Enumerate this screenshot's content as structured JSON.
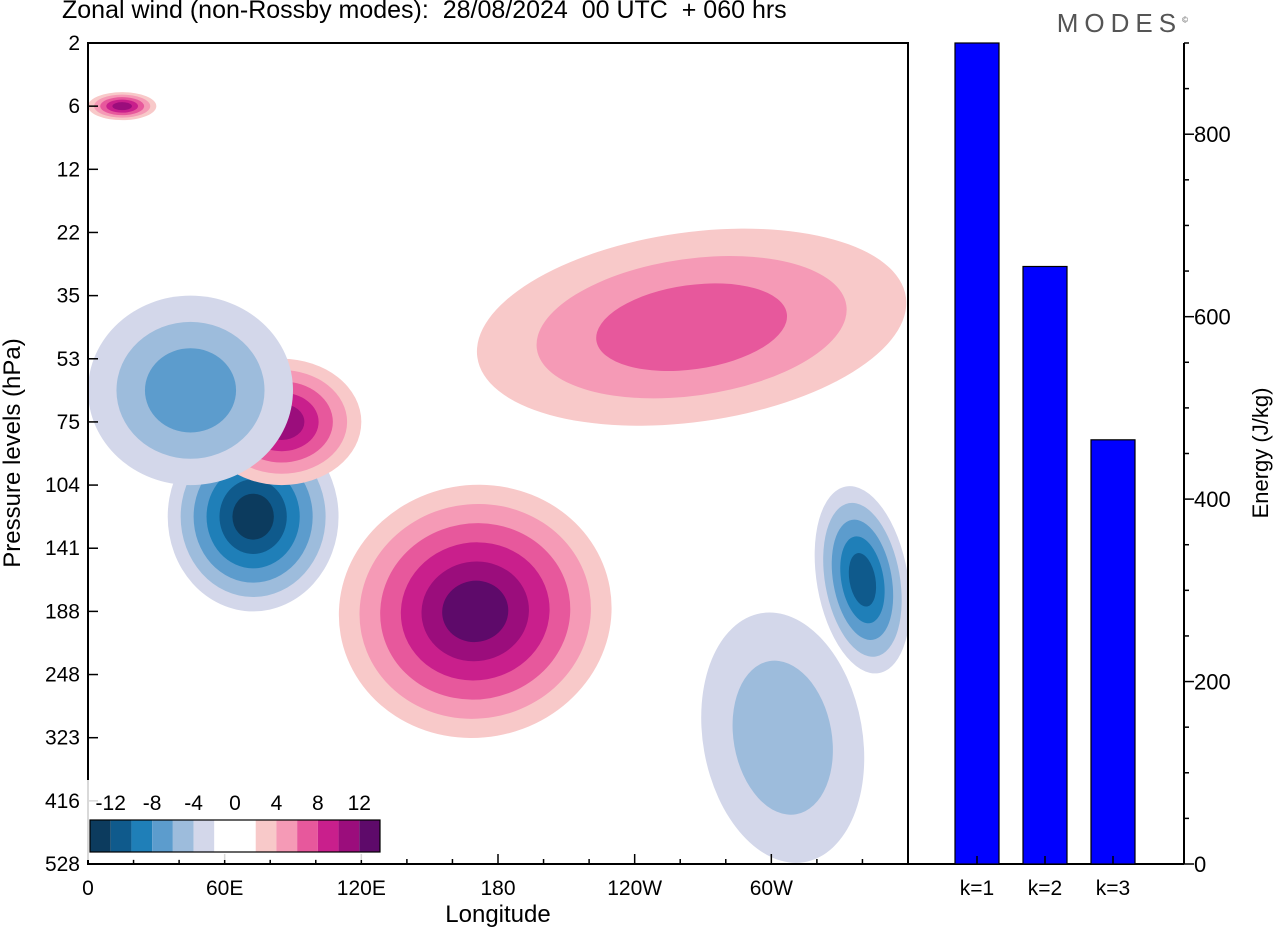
{
  "title": "Zonal wind (non-Rossby modes):  28/08/2024  00 UTC  + 060 hrs",
  "brand": "MODES",
  "brand_mark": "©",
  "chart_data": [
    {
      "type": "heatmap",
      "title": "Zonal wind (non-Rossby modes):  28/08/2024  00 UTC  + 060 hrs",
      "xlabel": "Longitude",
      "ylabel": "Pressure levels (hPa)",
      "x_ticks": [
        "0",
        "60E",
        "120E",
        "180",
        "120W",
        "60W"
      ],
      "x_tick_values": [
        0,
        60,
        120,
        180,
        240,
        300
      ],
      "xlim": [
        0,
        360
      ],
      "y_ticks": [
        "2",
        "6",
        "12",
        "22",
        "35",
        "53",
        "75",
        "104",
        "141",
        "188",
        "248",
        "323",
        "416",
        "528"
      ],
      "y_scale": "categorical, top to bottom",
      "colorbar": {
        "labels": [
          "-12",
          "-8",
          "-4",
          "0",
          "4",
          "8",
          "12"
        ],
        "levels": [
          -14,
          -12,
          -10,
          -8,
          -6,
          -4,
          -2,
          0,
          2,
          4,
          6,
          8,
          10,
          12,
          14
        ],
        "colors": [
          "#0c3b5e",
          "#0f5a8c",
          "#1f7fb8",
          "#5c9ccd",
          "#9dbcdc",
          "#d3d7ea",
          "#ffffff",
          "#ffffff",
          "#f8c9c9",
          "#f59ab6",
          "#e7589c",
          "#c91f8c",
          "#9b0d7c",
          "#5e0a6a"
        ]
      },
      "positive_color": "#f59ab6",
      "negative_color": "#9dbcdc",
      "features": [
        {
          "sign": "positive",
          "lon": [
            0,
            30
          ],
          "level": [
            6,
            6
          ],
          "peak": 10
        },
        {
          "sign": "positive",
          "lon": [
            110,
            230
          ],
          "level": [
            104,
            323
          ],
          "peak": 12
        },
        {
          "sign": "negative",
          "lon": [
            35,
            110
          ],
          "level": [
            75,
            188
          ],
          "peak": -12
        },
        {
          "sign": "negative",
          "lon": [
            320,
            360
          ],
          "level": [
            104,
            248
          ],
          "peak": -10
        },
        {
          "sign": "positive",
          "lon": [
            50,
            120
          ],
          "level": [
            53,
            104
          ],
          "peak": 10
        },
        {
          "sign": "positive",
          "lon": [
            170,
            360
          ],
          "level": [
            22,
            75
          ],
          "peak": 6
        },
        {
          "sign": "negative",
          "lon": [
            0,
            90
          ],
          "level": [
            35,
            104
          ],
          "peak": -6
        },
        {
          "sign": "negative",
          "lon": [
            270,
            340
          ],
          "level": [
            188,
            528
          ],
          "peak": -4
        }
      ]
    },
    {
      "type": "bar",
      "categories": [
        "k=1",
        "k=2",
        "k=3"
      ],
      "values": [
        900,
        655,
        465
      ],
      "ylabel": "Energy (J/kg)",
      "ylim": [
        0,
        900
      ],
      "y_ticks": [
        0,
        200,
        400,
        600,
        800
      ],
      "bar_color": "#0000ff"
    }
  ]
}
